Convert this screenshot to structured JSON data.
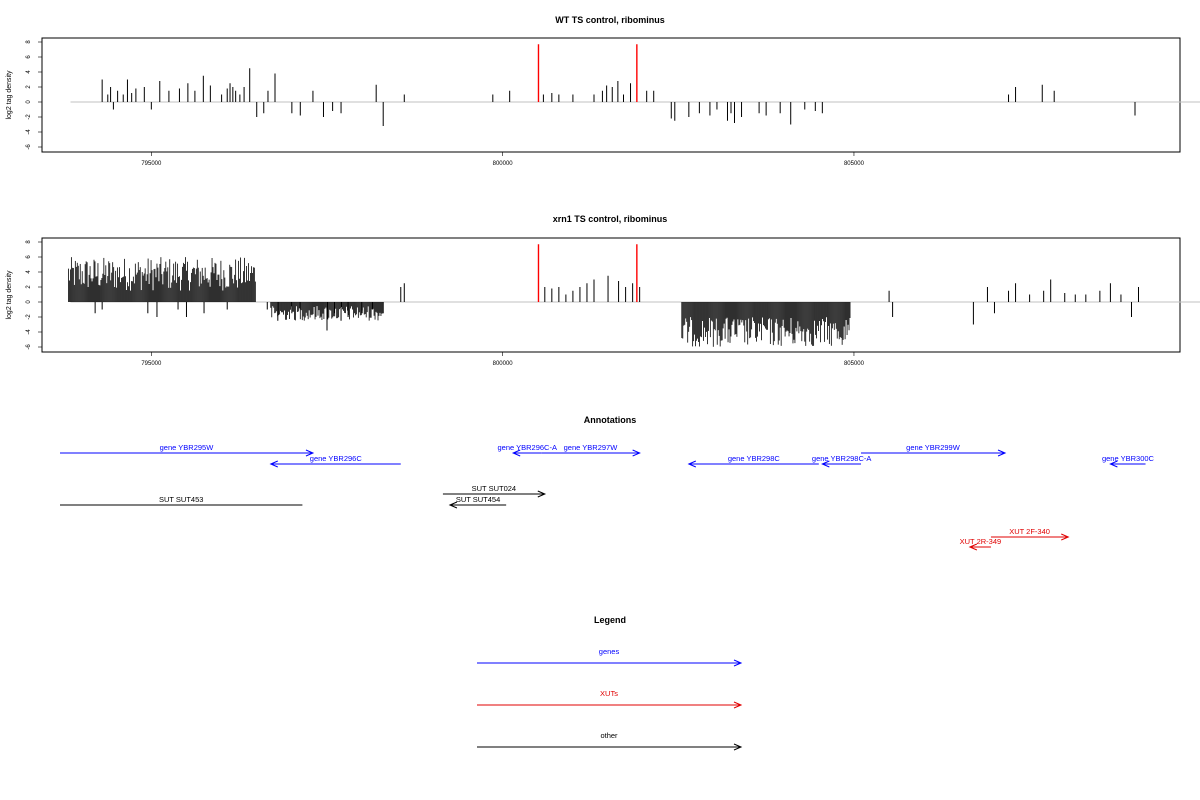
{
  "panels": [
    {
      "title": "WT TS control, ribominus",
      "ylabel": "log2 tag density",
      "xticks": [
        "795000",
        "800000",
        "805000"
      ],
      "yticks": [
        "-6",
        "-4",
        "-2",
        "0",
        "2",
        "4",
        "6",
        "8"
      ]
    },
    {
      "title": "xrn1 TS control, ribominus",
      "ylabel": "log2 tag density",
      "xticks": [
        "795000",
        "800000",
        "805000"
      ],
      "yticks": [
        "-6",
        "-4",
        "-2",
        "0",
        "2",
        "4",
        "6",
        "8"
      ]
    }
  ],
  "annotations": {
    "title": "Annotations",
    "features": [
      {
        "label": "gene YBR295W",
        "start": 793700,
        "end": 797300,
        "strand": "+",
        "color": "#0000ff"
      },
      {
        "label": "gene YBR296C",
        "start": 796700,
        "end": 798550,
        "strand": "-",
        "color": "#0000ff"
      },
      {
        "label": "gene YBR296C-A",
        "start": 800150,
        "end": 800550,
        "strand": "-",
        "color": "#0000ff"
      },
      {
        "label": "gene YBR297W",
        "start": 800550,
        "end": 801950,
        "strand": "+",
        "color": "#0000ff"
      },
      {
        "label": "gene YBR298C",
        "start": 802650,
        "end": 804500,
        "strand": "-",
        "color": "#0000ff"
      },
      {
        "label": "gene YBR298C-A",
        "start": 804550,
        "end": 805100,
        "strand": "-",
        "color": "#0000ff"
      },
      {
        "label": "gene YBR299W",
        "start": 805100,
        "end": 807150,
        "strand": "+",
        "color": "#0000ff"
      },
      {
        "label": "gene YBR300C",
        "start": 808650,
        "end": 809150,
        "strand": "-",
        "color": "#0000ff"
      },
      {
        "label": "SUT SUT453",
        "start": 793700,
        "end": 797150,
        "strand": ".",
        "color": "#000000"
      },
      {
        "label": "SUT SUT024",
        "start": 799150,
        "end": 800600,
        "strand": "+",
        "color": "#000000"
      },
      {
        "label": "SUT SUT454",
        "start": 799250,
        "end": 800050,
        "strand": "-",
        "color": "#000000"
      },
      {
        "label": "XUT 2R-349",
        "start": 806650,
        "end": 806950,
        "strand": "-",
        "color": "#e00000"
      },
      {
        "label": "XUT 2F-340",
        "start": 806950,
        "end": 808050,
        "strand": "+",
        "color": "#e00000"
      }
    ]
  },
  "legend": {
    "title": "Legend",
    "items": [
      {
        "label": "genes",
        "color": "#0000ff"
      },
      {
        "label": "XUTs",
        "color": "#e00000"
      },
      {
        "label": "other",
        "color": "#000000"
      }
    ]
  },
  "chart_data": [
    {
      "type": "bar",
      "title": "WT TS control, ribominus",
      "ylabel": "log2 tag density",
      "xlabel": "",
      "xlim": [
        793700,
        809950
      ],
      "ylim": [
        -6,
        8
      ],
      "xticks": [
        795000,
        800000,
        805000
      ],
      "yticks": [
        -6,
        -4,
        -2,
        0,
        2,
        4,
        6,
        8
      ],
      "baseline_color": "#c0c0c0",
      "bar_color": "#000000",
      "highlight_color": "#ff0000",
      "highlights": [
        {
          "x": 800510,
          "y": 7.7
        },
        {
          "x": 801910,
          "y": 7.7
        }
      ],
      "x": [
        794300,
        794380,
        794420,
        794460,
        794520,
        794600,
        794660,
        794720,
        794780,
        794900,
        795000,
        795120,
        795250,
        795400,
        795520,
        795620,
        795740,
        795840,
        796000,
        796080,
        796120,
        796160,
        796200,
        796260,
        796320,
        796400,
        796500,
        796600,
        796660,
        796760,
        797000,
        797120,
        797300,
        797450,
        797580,
        797700,
        798200,
        798300,
        798600,
        799860,
        800100,
        800580,
        800700,
        800800,
        801000,
        801300,
        801420,
        801480,
        801560,
        801640,
        801720,
        801820,
        802050,
        802150,
        802400,
        802450,
        802650,
        802800,
        802950,
        803050,
        803200,
        803250,
        803300,
        803400,
        803650,
        803750,
        803950,
        804100,
        804300,
        804450,
        804550,
        807200,
        807300,
        807680,
        807850,
        809000
      ],
      "values": [
        3.0,
        1.0,
        2.0,
        -1.0,
        1.5,
        1.0,
        3.0,
        1.2,
        1.8,
        2.0,
        -1.0,
        2.8,
        1.5,
        1.8,
        2.5,
        1.5,
        3.5,
        2.2,
        1.0,
        1.8,
        2.5,
        2.0,
        1.5,
        1.0,
        2.0,
        4.5,
        -2.0,
        -1.5,
        1.5,
        3.8,
        -1.5,
        -1.8,
        1.5,
        -2.0,
        -1.2,
        -1.5,
        2.3,
        -3.2,
        1.0,
        1.0,
        1.5,
        1.0,
        1.2,
        1.0,
        1.0,
        1.0,
        1.5,
        2.2,
        2.0,
        2.8,
        1.0,
        2.5,
        1.5,
        1.5,
        -2.2,
        -2.5,
        -2.0,
        -1.5,
        -1.8,
        -1.0,
        -2.5,
        -1.5,
        -2.8,
        -2.0,
        -1.5,
        -1.8,
        -1.5,
        -3.0,
        -1.0,
        -1.2,
        -1.5,
        1.0,
        2.0,
        2.3,
        1.5,
        -1.8
      ],
      "ranges": []
    },
    {
      "type": "bar",
      "title": "xrn1 TS control, ribominus",
      "ylabel": "log2 tag density",
      "xlabel": "",
      "xlim": [
        793700,
        809950
      ],
      "ylim": [
        -6,
        8
      ],
      "xticks": [
        795000,
        800000,
        805000
      ],
      "yticks": [
        -6,
        -4,
        -2,
        0,
        2,
        4,
        6,
        8
      ],
      "baseline_color": "#c0c0c0",
      "bar_color": "#000000",
      "highlight_color": "#ff0000",
      "highlights": [
        {
          "x": 800510,
          "y": 7.7
        },
        {
          "x": 801910,
          "y": 7.7
        }
      ],
      "x": [
        794200,
        794300,
        794950,
        795080,
        795380,
        795500,
        795750,
        796080,
        796650,
        796800,
        797000,
        797120,
        797500,
        797600,
        797700,
        797800,
        798000,
        798150,
        798300,
        798550,
        798600,
        800600,
        800700,
        800800,
        800900,
        801000,
        801100,
        801200,
        801300,
        801500,
        801650,
        801750,
        801850,
        801950,
        805500,
        805550,
        806700,
        806900,
        807000,
        807200,
        807300,
        807500,
        807700,
        807800,
        808000,
        808150,
        808300,
        808500,
        808650,
        808800,
        808950,
        809050
      ],
      "values": [
        -1.5,
        -1.0,
        -1.5,
        -2.0,
        -1.0,
        -2.0,
        -1.5,
        -1.0,
        -1.0,
        -2.5,
        -1.5,
        -1.0,
        -3.8,
        -1.5,
        -2.5,
        -2.0,
        -1.5,
        -1.0,
        -1.5,
        2.0,
        2.5,
        2.0,
        1.8,
        2.0,
        1.0,
        1.5,
        2.0,
        2.5,
        3.0,
        3.5,
        2.8,
        2.0,
        2.5,
        2.0,
        1.5,
        -2.0,
        -3.0,
        2.0,
        -1.5,
        1.5,
        2.5,
        1.0,
        1.5,
        3.0,
        1.2,
        1.0,
        1.0,
        1.5,
        2.5,
        1.0,
        -2.0,
        2.0
      ],
      "ranges": [
        {
          "start": 793820,
          "end": 796480,
          "min": 1.5,
          "max": 6.0,
          "sign": 1
        },
        {
          "start": 796700,
          "end": 798300,
          "min": 0.5,
          "max": 2.5,
          "sign": -1
        },
        {
          "start": 802550,
          "end": 804950,
          "min": 2.0,
          "max": 6.0,
          "sign": -1
        }
      ]
    }
  ]
}
